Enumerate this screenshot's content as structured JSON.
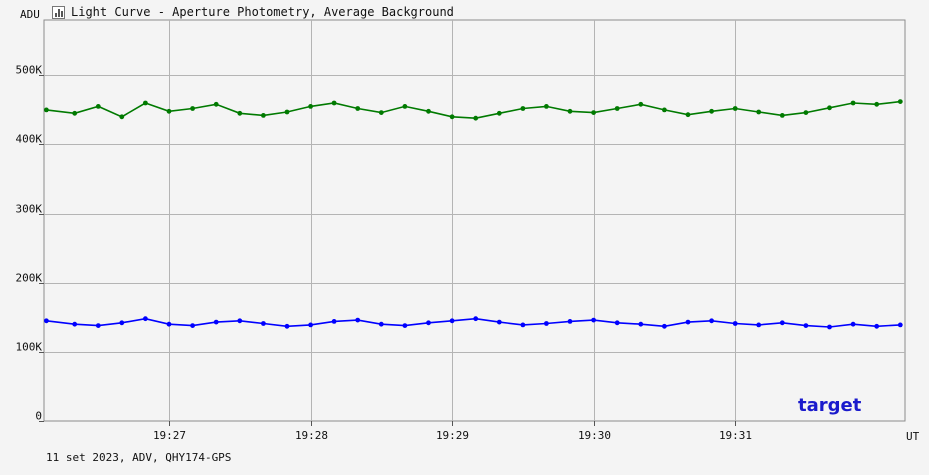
{
  "window": {
    "title": "Light Curve - Aperture Photometry, Average Background",
    "icon": "chart-icon"
  },
  "footer": {
    "text": "11 set 2023, ADV, QHY174-GPS"
  },
  "colors": {
    "background": "#f4f4f4",
    "plot_bg": "#f4f4f4",
    "grid": "#b4b4b4",
    "green_series": "#007a00",
    "blue_series": "#0000ff",
    "label": "#1a1acc"
  },
  "chart_data": {
    "type": "line",
    "title": "Light Curve - Aperture Photometry, Average Background",
    "ylabel": "ADU",
    "xlabel": "UT",
    "ylim": [
      0,
      580000
    ],
    "y_ticks": [
      {
        "value": 0,
        "label": "0"
      },
      {
        "value": 100000,
        "label": "100K"
      },
      {
        "value": 200000,
        "label": "200K"
      },
      {
        "value": 300000,
        "label": "300K"
      },
      {
        "value": 400000,
        "label": "400K"
      },
      {
        "value": 500000,
        "label": "500K"
      }
    ],
    "xlim": [
      "19:26:07",
      "19:32:12"
    ],
    "x_ticks": [
      {
        "value": "19:27:00",
        "label": "19:27"
      },
      {
        "value": "19:28:00",
        "label": "19:28"
      },
      {
        "value": "19:29:00",
        "label": "19:29"
      },
      {
        "value": "19:30:00",
        "label": "19:30"
      },
      {
        "value": "19:31:00",
        "label": "19:31"
      }
    ],
    "grid": true,
    "series": [
      {
        "color": "#007a00",
        "x": [
          "19:26:08",
          "19:26:20",
          "19:26:30",
          "19:26:40",
          "19:26:50",
          "19:27:00",
          "19:27:10",
          "19:27:20",
          "19:27:30",
          "19:27:40",
          "19:27:50",
          "19:28:00",
          "19:28:10",
          "19:28:20",
          "19:28:30",
          "19:28:40",
          "19:28:50",
          "19:29:00",
          "19:29:10",
          "19:29:20",
          "19:29:30",
          "19:29:40",
          "19:29:50",
          "19:30:00",
          "19:30:10",
          "19:30:20",
          "19:30:30",
          "19:30:40",
          "19:30:50",
          "19:31:00",
          "19:31:10",
          "19:31:20",
          "19:31:30",
          "19:31:40",
          "19:31:50",
          "19:32:00",
          "19:32:10"
        ],
        "y": [
          450000,
          445000,
          455000,
          440000,
          460000,
          448000,
          452000,
          458000,
          445000,
          442000,
          447000,
          455000,
          460000,
          452000,
          446000,
          455000,
          448000,
          440000,
          438000,
          445000,
          452000,
          455000,
          448000,
          446000,
          452000,
          458000,
          450000,
          443000,
          448000,
          452000,
          447000,
          442000,
          446000,
          453000,
          460000,
          458000,
          462000
        ]
      },
      {
        "color": "#0000ff",
        "name": "target",
        "x": [
          "19:26:08",
          "19:26:20",
          "19:26:30",
          "19:26:40",
          "19:26:50",
          "19:27:00",
          "19:27:10",
          "19:27:20",
          "19:27:30",
          "19:27:40",
          "19:27:50",
          "19:28:00",
          "19:28:10",
          "19:28:20",
          "19:28:30",
          "19:28:40",
          "19:28:50",
          "19:29:00",
          "19:29:10",
          "19:29:20",
          "19:29:30",
          "19:29:40",
          "19:29:50",
          "19:30:00",
          "19:30:10",
          "19:30:20",
          "19:30:30",
          "19:30:40",
          "19:30:50",
          "19:31:00",
          "19:31:10",
          "19:31:20",
          "19:31:30",
          "19:31:40",
          "19:31:50",
          "19:32:00",
          "19:32:10"
        ],
        "y": [
          145000,
          140000,
          138000,
          142000,
          148000,
          140000,
          138000,
          143000,
          145000,
          141000,
          137000,
          139000,
          144000,
          146000,
          140000,
          138000,
          142000,
          145000,
          148000,
          143000,
          139000,
          141000,
          144000,
          146000,
          142000,
          140000,
          137000,
          143000,
          145000,
          141000,
          139000,
          142000,
          138000,
          136000,
          140000,
          137000,
          139000
        ]
      }
    ],
    "legend_position": "bottom-right"
  }
}
